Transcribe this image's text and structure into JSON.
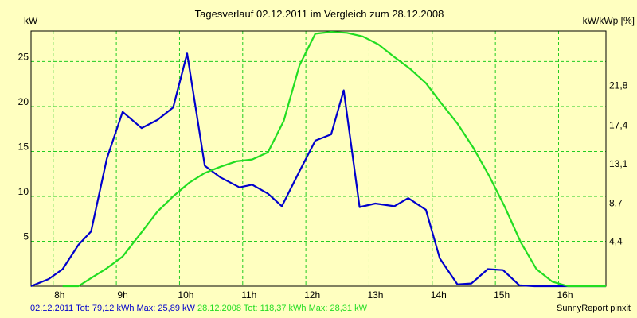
{
  "chart_data": {
    "type": "line",
    "title": "Tagesverlauf 02.12.2011 im Vergleich zum 28.12.2008",
    "ylabel_left": "kW",
    "ylabel_right": "kW/kWp [%]",
    "ylim": [
      0,
      28.4
    ],
    "xlim": [
      7.65,
      16.75
    ],
    "x_ticks": [
      8,
      9,
      10,
      11,
      12,
      13,
      14,
      15,
      16
    ],
    "x_tick_labels": [
      "8h",
      "9h",
      "10h",
      "11h",
      "12h",
      "13h",
      "14h",
      "15h",
      "16h"
    ],
    "y_left_ticks": [
      5,
      10,
      15,
      20,
      25
    ],
    "y_right_tick_values": [
      4.45,
      8.7,
      13.1,
      17.4,
      21.8
    ],
    "y_right_tick_labels": [
      "4,4",
      "8,7",
      "13,1",
      "17,4",
      "21,8"
    ],
    "grid": true,
    "series": [
      {
        "name": "02.12.2011",
        "color": "#0000CC",
        "x": [
          7.65,
          7.93,
          8.15,
          8.4,
          8.6,
          8.85,
          9.1,
          9.4,
          9.65,
          9.9,
          10.12,
          10.4,
          10.65,
          10.95,
          11.15,
          11.4,
          11.62,
          11.9,
          12.15,
          12.4,
          12.6,
          12.85,
          13.1,
          13.4,
          13.62,
          13.9,
          14.12,
          14.4,
          14.62,
          14.88,
          15.12,
          15.38,
          15.62,
          15.9,
          16.75
        ],
        "values": [
          0,
          0.8,
          1.9,
          4.6,
          6.1,
          14.2,
          19.4,
          17.6,
          18.5,
          19.9,
          25.9,
          13.4,
          12.1,
          11.0,
          11.3,
          10.3,
          8.9,
          12.8,
          16.2,
          16.9,
          21.8,
          8.8,
          9.2,
          8.9,
          9.8,
          8.5,
          3.1,
          0.2,
          0.3,
          1.9,
          1.8,
          0.1,
          0.0,
          0.0,
          0.0
        ]
      },
      {
        "name": "28.12.2008",
        "color": "#22DD22",
        "x": [
          8.15,
          8.4,
          8.6,
          8.85,
          9.1,
          9.4,
          9.65,
          9.9,
          10.15,
          10.4,
          10.65,
          10.9,
          11.15,
          11.4,
          11.65,
          11.9,
          12.15,
          12.4,
          12.65,
          12.9,
          13.15,
          13.4,
          13.65,
          13.9,
          14.15,
          14.4,
          14.65,
          14.9,
          15.15,
          15.4,
          15.65,
          15.9,
          16.15,
          16.75
        ],
        "values": [
          0,
          0,
          0.9,
          2.0,
          3.3,
          6.0,
          8.3,
          10.0,
          11.5,
          12.6,
          13.3,
          13.9,
          14.1,
          14.9,
          18.4,
          24.6,
          28.1,
          28.3,
          28.2,
          27.8,
          26.9,
          25.5,
          24.2,
          22.6,
          20.3,
          18.1,
          15.4,
          12.3,
          8.8,
          4.9,
          1.9,
          0.5,
          0,
          0
        ]
      }
    ]
  },
  "footer": {
    "series1_label": "02.12.2011 Tot: 79,12 kWh Max: 25,89 kW",
    "series2_label": "28.12.2008 Tot: 118,37 kWh Max: 28,31 kW",
    "credit": "SunnyReport pinxit"
  }
}
